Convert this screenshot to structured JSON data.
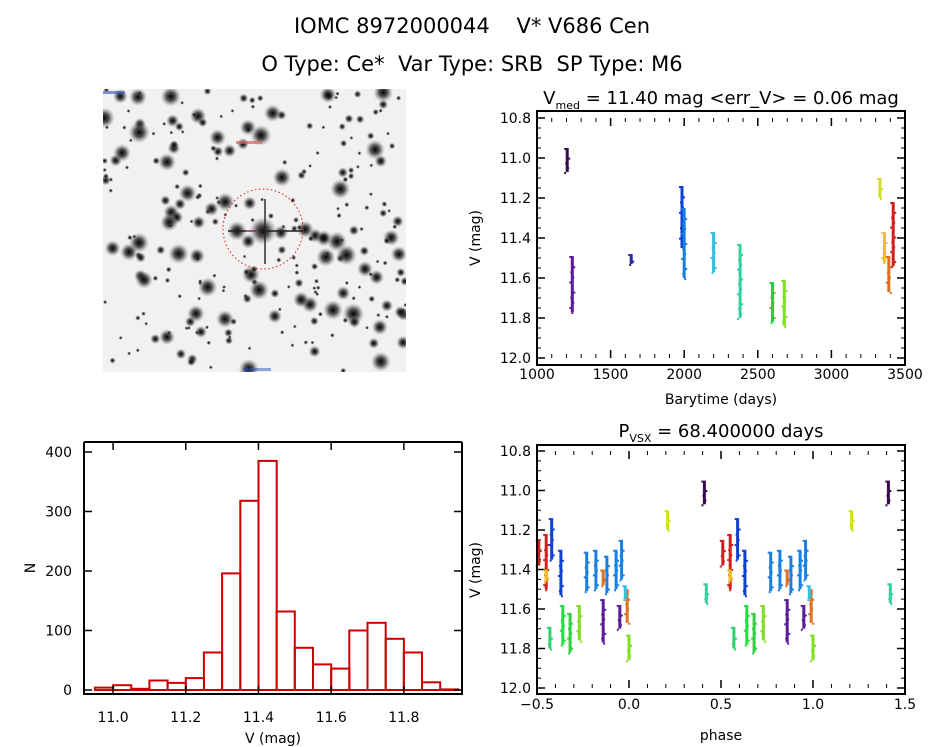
{
  "header": {
    "title_line1": "IOMC 8972000044    V* V686 Cen",
    "title_line2": "O Type: Ce*  Var Type: SRB  SP Type: M6"
  },
  "thumbnail": {
    "description": "sky image cutout with red dotted circle around target star",
    "circle_color": "#d02020"
  },
  "chart_data": [
    {
      "id": "light-curve",
      "type": "scatter",
      "title_prefix": "V",
      "title_sub": "med",
      "title_rest": " = 11.40 mag <err_V> = 0.06 mag",
      "xlabel": "Barytime (days)",
      "ylabel": "V (mag)",
      "xlim": [
        1000,
        3500
      ],
      "ylim": [
        10.8,
        12.0
      ],
      "y_inverted": true,
      "xticks": [
        1000,
        1500,
        2000,
        2500,
        3000,
        3500
      ],
      "xtick_labels": [
        "1000",
        "1500",
        "2000",
        "2500",
        "3000",
        "3500"
      ],
      "yticks": [
        10.8,
        11.0,
        11.2,
        11.4,
        11.6,
        11.8,
        12.0
      ],
      "ytick_labels": [
        "10.8",
        "11.0",
        "11.2",
        "11.4",
        "11.6",
        "11.8",
        "12.0"
      ],
      "clusters": [
        {
          "x": 1205,
          "vmin": 10.95,
          "vmax": 11.07,
          "color": "#3a0a50"
        },
        {
          "x": 1240,
          "vmin": 11.49,
          "vmax": 11.77,
          "color": "#5a1a9a"
        },
        {
          "x": 1640,
          "vmin": 11.48,
          "vmax": 11.53,
          "color": "#2a2aa0"
        },
        {
          "x": 1985,
          "vmin": 11.14,
          "vmax": 11.45,
          "color": "#1040d0"
        },
        {
          "x": 2000,
          "vmin": 11.25,
          "vmax": 11.6,
          "color": "#1a80e0"
        },
        {
          "x": 2200,
          "vmin": 11.37,
          "vmax": 11.57,
          "color": "#30c0e0"
        },
        {
          "x": 2380,
          "vmin": 11.43,
          "vmax": 11.8,
          "color": "#30d0a0"
        },
        {
          "x": 2600,
          "vmin": 11.62,
          "vmax": 11.82,
          "color": "#20d040"
        },
        {
          "x": 2680,
          "vmin": 11.61,
          "vmax": 11.84,
          "color": "#80e020"
        },
        {
          "x": 3330,
          "vmin": 11.1,
          "vmax": 11.2,
          "color": "#d0e020"
        },
        {
          "x": 3360,
          "vmin": 11.37,
          "vmax": 11.52,
          "color": "#f0c020"
        },
        {
          "x": 3390,
          "vmin": 11.49,
          "vmax": 11.67,
          "color": "#e07020"
        },
        {
          "x": 3420,
          "vmin": 11.22,
          "vmax": 11.54,
          "color": "#d02020"
        }
      ]
    },
    {
      "id": "histogram",
      "type": "bar",
      "xlabel": "V (mag)",
      "ylabel": "N",
      "xlim": [
        10.92,
        11.96
      ],
      "ylim": [
        0,
        400
      ],
      "bar_color": "#cc0000",
      "xticks": [
        11.0,
        11.2,
        11.4,
        11.6,
        11.8
      ],
      "xtick_labels": [
        "11.0",
        "11.2",
        "11.4",
        "11.6",
        "11.8"
      ],
      "yticks": [
        0,
        100,
        200,
        300,
        400
      ],
      "ytick_labels": [
        "0",
        "100",
        "200",
        "300",
        "400"
      ],
      "bin_width": 0.05,
      "bin_starts": [
        10.95,
        11.0,
        11.05,
        11.1,
        11.15,
        11.2,
        11.25,
        11.3,
        11.35,
        11.4,
        11.45,
        11.5,
        11.55,
        11.6,
        11.65,
        11.7,
        11.75,
        11.8,
        11.85,
        11.9
      ],
      "values": [
        4,
        8,
        2,
        16,
        12,
        20,
        63,
        196,
        318,
        385,
        132,
        71,
        43,
        36,
        100,
        113,
        86,
        63,
        13,
        1
      ]
    },
    {
      "id": "phase-curve",
      "type": "scatter",
      "title_prefix": "P",
      "title_sub": "VSX",
      "title_rest": " = 68.400000 days",
      "xlabel": "phase",
      "ylabel": "V (mag)",
      "xlim": [
        -0.5,
        1.5
      ],
      "ylim": [
        10.8,
        12.0
      ],
      "y_inverted": true,
      "xticks": [
        -0.5,
        0.0,
        0.5,
        1.0,
        1.5
      ],
      "xtick_labels": [
        "−0.5",
        "0.0",
        "0.5",
        "1.0",
        "1.5"
      ],
      "yticks": [
        10.8,
        11.0,
        11.2,
        11.4,
        11.6,
        11.8,
        12.0
      ],
      "ytick_labels": [
        "10.8",
        "11.0",
        "11.2",
        "11.4",
        "11.6",
        "11.8",
        "12.0"
      ],
      "clusters": [
        {
          "x": -0.49,
          "vmin": 11.25,
          "vmax": 11.38,
          "color": "#d02020"
        },
        {
          "x": -0.45,
          "vmin": 11.22,
          "vmax": 11.5,
          "color": "#d02020"
        },
        {
          "x": -0.45,
          "vmin": 11.4,
          "vmax": 11.46,
          "color": "#f0c020"
        },
        {
          "x": -0.42,
          "vmin": 11.14,
          "vmax": 11.35,
          "color": "#1040d0"
        },
        {
          "x": -0.37,
          "vmin": 11.3,
          "vmax": 11.53,
          "color": "#1040d0"
        },
        {
          "x": -0.43,
          "vmin": 11.69,
          "vmax": 11.8,
          "color": "#30d070"
        },
        {
          "x": -0.36,
          "vmin": 11.58,
          "vmax": 11.78,
          "color": "#20e040"
        },
        {
          "x": -0.32,
          "vmin": 11.62,
          "vmax": 11.82,
          "color": "#30d040"
        },
        {
          "x": -0.27,
          "vmin": 11.58,
          "vmax": 11.76,
          "color": "#80e020"
        },
        {
          "x": -0.23,
          "vmin": 11.31,
          "vmax": 11.51,
          "color": "#1a80e0"
        },
        {
          "x": -0.18,
          "vmin": 11.3,
          "vmax": 11.5,
          "color": "#1a80e0"
        },
        {
          "x": -0.12,
          "vmin": 11.33,
          "vmax": 11.52,
          "color": "#1a80e0"
        },
        {
          "x": -0.07,
          "vmin": 11.3,
          "vmax": 11.5,
          "color": "#1a80e0"
        },
        {
          "x": -0.04,
          "vmin": 11.25,
          "vmax": 11.45,
          "color": "#1a80e0"
        },
        {
          "x": -0.14,
          "vmin": 11.55,
          "vmax": 11.77,
          "color": "#5a1a9a"
        },
        {
          "x": -0.05,
          "vmin": 11.58,
          "vmax": 11.7,
          "color": "#5a1a9a"
        },
        {
          "x": -0.14,
          "vmin": 11.4,
          "vmax": 11.48,
          "color": "#e07020"
        },
        {
          "x": -0.01,
          "vmin": 11.5,
          "vmax": 11.67,
          "color": "#e07020"
        },
        {
          "x": -0.02,
          "vmin": 11.48,
          "vmax": 11.55,
          "color": "#30c0e0"
        },
        {
          "x": 0.0,
          "vmin": 11.73,
          "vmax": 11.86,
          "color": "#80e020"
        },
        {
          "x": 0.21,
          "vmin": 11.1,
          "vmax": 11.2,
          "color": "#d0e020"
        },
        {
          "x": 0.41,
          "vmin": 10.95,
          "vmax": 11.07,
          "color": "#3a0a50"
        },
        {
          "x": 0.42,
          "vmin": 11.47,
          "vmax": 11.57,
          "color": "#30d0a0"
        },
        {
          "x": 0.51,
          "vmin": 11.25,
          "vmax": 11.38,
          "color": "#d02020"
        },
        {
          "x": 0.55,
          "vmin": 11.22,
          "vmax": 11.5,
          "color": "#d02020"
        },
        {
          "x": 0.55,
          "vmin": 11.4,
          "vmax": 11.46,
          "color": "#f0c020"
        },
        {
          "x": 0.59,
          "vmin": 11.14,
          "vmax": 11.35,
          "color": "#1040d0"
        },
        {
          "x": 0.63,
          "vmin": 11.3,
          "vmax": 11.53,
          "color": "#1040d0"
        },
        {
          "x": 0.57,
          "vmin": 11.69,
          "vmax": 11.8,
          "color": "#30d070"
        },
        {
          "x": 0.64,
          "vmin": 11.58,
          "vmax": 11.78,
          "color": "#20e040"
        },
        {
          "x": 0.68,
          "vmin": 11.62,
          "vmax": 11.82,
          "color": "#30d040"
        },
        {
          "x": 0.73,
          "vmin": 11.58,
          "vmax": 11.76,
          "color": "#80e020"
        },
        {
          "x": 0.77,
          "vmin": 11.31,
          "vmax": 11.51,
          "color": "#1a80e0"
        },
        {
          "x": 0.82,
          "vmin": 11.3,
          "vmax": 11.5,
          "color": "#1a80e0"
        },
        {
          "x": 0.88,
          "vmin": 11.33,
          "vmax": 11.52,
          "color": "#1a80e0"
        },
        {
          "x": 0.93,
          "vmin": 11.3,
          "vmax": 11.5,
          "color": "#1a80e0"
        },
        {
          "x": 0.96,
          "vmin": 11.25,
          "vmax": 11.45,
          "color": "#1a80e0"
        },
        {
          "x": 0.86,
          "vmin": 11.55,
          "vmax": 11.77,
          "color": "#5a1a9a"
        },
        {
          "x": 0.95,
          "vmin": 11.58,
          "vmax": 11.7,
          "color": "#5a1a9a"
        },
        {
          "x": 0.86,
          "vmin": 11.4,
          "vmax": 11.48,
          "color": "#e07020"
        },
        {
          "x": 0.99,
          "vmin": 11.5,
          "vmax": 11.67,
          "color": "#e07020"
        },
        {
          "x": 0.98,
          "vmin": 11.48,
          "vmax": 11.55,
          "color": "#30c0e0"
        },
        {
          "x": 1.0,
          "vmin": 11.73,
          "vmax": 11.86,
          "color": "#80e020"
        },
        {
          "x": 1.21,
          "vmin": 11.1,
          "vmax": 11.2,
          "color": "#d0e020"
        },
        {
          "x": 1.41,
          "vmin": 10.95,
          "vmax": 11.07,
          "color": "#3a0a50"
        },
        {
          "x": 1.42,
          "vmin": 11.47,
          "vmax": 11.57,
          "color": "#30d0a0"
        }
      ]
    }
  ]
}
